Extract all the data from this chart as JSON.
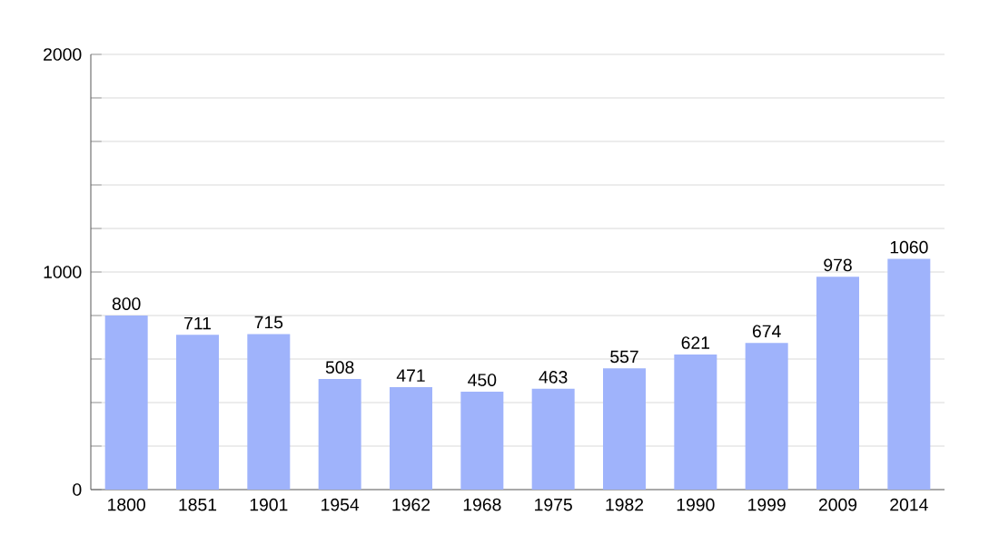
{
  "chart_data": {
    "type": "bar",
    "categories": [
      "1800",
      "1851",
      "1901",
      "1954",
      "1962",
      "1968",
      "1975",
      "1982",
      "1990",
      "1999",
      "2009",
      "2014"
    ],
    "values": [
      800,
      711,
      715,
      508,
      471,
      450,
      463,
      557,
      621,
      674,
      978,
      1060
    ],
    "color": "#9fb3fb",
    "data_labels": true,
    "ylim": [
      0,
      2000
    ],
    "yticks": [
      0,
      {
        "value": 200,
        "label": null
      },
      {
        "value": 400,
        "label": null
      },
      {
        "value": 600,
        "label": null
      },
      {
        "value": 800,
        "label": null
      },
      1000,
      {
        "value": 1200,
        "label": null
      },
      {
        "value": 1400,
        "label": null
      },
      {
        "value": 1600,
        "label": null
      },
      {
        "value": 1800,
        "label": null
      },
      2000
    ],
    "grid": "y"
  }
}
